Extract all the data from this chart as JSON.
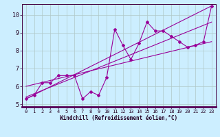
{
  "xlabel": "Windchill (Refroidissement éolien,°C)",
  "bg_color": "#cceeff",
  "line_color": "#990099",
  "grid_color": "#b0c8c8",
  "xlim": [
    -0.5,
    23.5
  ],
  "ylim": [
    4.85,
    10.6
  ],
  "yticks": [
    5,
    6,
    7,
    8,
    9,
    10
  ],
  "xticks": [
    0,
    1,
    2,
    3,
    4,
    5,
    6,
    7,
    8,
    9,
    10,
    11,
    12,
    13,
    14,
    15,
    16,
    17,
    18,
    19,
    20,
    21,
    22,
    23
  ],
  "series1_x": [
    0,
    1,
    2,
    3,
    4,
    5,
    6,
    7,
    8,
    9,
    10,
    11,
    12,
    13,
    14,
    15,
    16,
    17,
    18,
    19,
    20,
    21,
    22,
    23
  ],
  "series1_y": [
    5.3,
    5.5,
    6.2,
    6.2,
    6.6,
    6.6,
    6.6,
    5.3,
    5.7,
    5.5,
    6.5,
    9.2,
    8.3,
    7.5,
    8.4,
    9.6,
    9.1,
    9.1,
    8.8,
    8.5,
    8.2,
    8.3,
    8.5,
    10.5
  ],
  "line1_x": [
    0,
    23
  ],
  "line1_y": [
    5.3,
    10.5
  ],
  "line2_x": [
    0,
    5,
    23
  ],
  "line2_y": [
    5.5,
    6.6,
    9.5
  ],
  "line3_x": [
    0,
    11,
    23
  ],
  "line3_y": [
    5.8,
    7.8,
    8.8
  ],
  "xlabel_fontsize": 5.5,
  "tick_fontsize_x": 5.0,
  "tick_fontsize_y": 6.0
}
